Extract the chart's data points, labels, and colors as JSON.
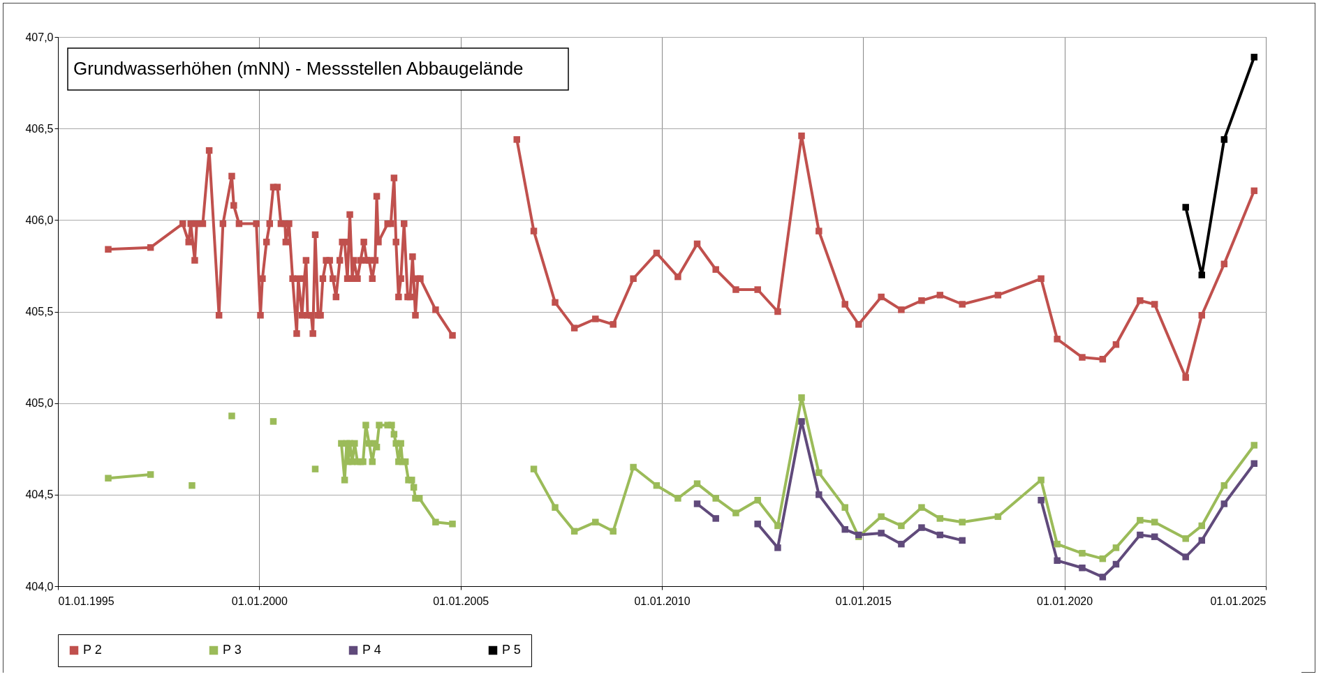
{
  "chart_data": {
    "type": "line",
    "title": "Grundwasserhöhen (mNN) - Messstellen Abbaugelände",
    "xlim": [
      "1995-01-01",
      "2025-01-01"
    ],
    "xticks": [
      {
        "value": "1995-01-01",
        "label": "01.01.1995"
      },
      {
        "value": "2000-01-01",
        "label": "01.01.2000"
      },
      {
        "value": "2005-01-01",
        "label": "01.01.2005"
      },
      {
        "value": "2010-01-01",
        "label": "01.01.2010"
      },
      {
        "value": "2015-01-01",
        "label": "01.01.2015"
      },
      {
        "value": "2020-01-01",
        "label": "01.01.2020"
      },
      {
        "value": "2025-01-01",
        "label": "01.01.2025"
      }
    ],
    "ylim": [
      404,
      407
    ],
    "yticks": [
      {
        "value": 404,
        "label": "404,0"
      },
      {
        "value": 404.5,
        "label": "404,5"
      },
      {
        "value": 405,
        "label": "405,0"
      },
      {
        "value": 405.5,
        "label": "405,5"
      },
      {
        "value": 406,
        "label": "406,0"
      },
      {
        "value": 406.5,
        "label": "406,5"
      },
      {
        "value": 407,
        "label": "407,0"
      }
    ],
    "grid": true,
    "legend": "bottom",
    "marker": "square",
    "line_style": "solid",
    "series": [
      {
        "name": "P 2",
        "color": "#c0504d",
        "x": [
          "1996-04-01",
          "1997-04-20",
          "1998-02-06",
          "1998-04-01",
          "1998-04-20",
          "1998-05-26",
          "1998-06-13",
          "1998-08-07",
          "1998-10-04",
          "1999-01-01",
          "1999-02-06",
          "1999-04-27",
          "1999-05-15",
          "1999-07-02",
          "1999-12-06",
          "2000-01-12",
          "2000-01-30",
          "2000-03-07",
          "2000-04-05",
          "2000-05-08",
          "2000-06-14",
          "2000-07-16",
          "2000-08-22",
          "2000-08-29",
          "2000-09-27",
          "2000-10-30",
          "2000-12-06",
          "2000-12-20",
          "2001-01-23",
          "2001-02-14",
          "2001-03-01",
          "2001-03-15",
          "2001-04-17",
          "2001-05-02",
          "2001-05-23",
          "2001-06-18",
          "2001-07-10",
          "2001-07-31",
          "2001-08-30",
          "2001-10-01",
          "2001-10-30",
          "2001-11-28",
          "2002-01-01",
          "2002-01-23",
          "2002-02-14",
          "2002-03-11",
          "2002-04-02",
          "2002-04-24",
          "2002-05-08",
          "2002-06-10",
          "2002-07-09",
          "2002-08-07",
          "2002-09-02",
          "2002-09-24",
          "2002-10-23",
          "2002-11-18",
          "2002-12-02",
          "2002-12-17",
          "2003-03-11",
          "2003-04-09",
          "2003-05-08",
          "2003-05-26",
          "2003-06-18",
          "2003-07-09",
          "2003-08-07",
          "2003-09-09",
          "2003-10-01",
          "2003-10-23",
          "2003-11-18",
          "2003-12-09",
          "2004-01-01",
          "2004-05-19",
          "2004-10-19",
          "2005-08-01",
          "2006-05-26",
          "2006-10-27",
          "2007-05-08",
          "2007-10-30",
          "2008-05-08",
          "2008-10-16",
          "2009-04-17",
          "2009-11-14",
          "2010-05-26",
          "2010-11-17",
          "2011-05-05",
          "2011-11-03",
          "2012-05-19",
          "2012-11-17",
          "2013-06-21",
          "2013-11-25",
          "2014-07-20",
          "2014-11-21",
          "2015-06-14",
          "2015-12-13",
          "2016-06-14",
          "2016-11-28",
          "2017-06-18",
          "2018-05-08",
          "2019-06-03",
          "2019-10-27",
          "2020-06-10",
          "2020-12-13",
          "2021-04-13",
          "2021-11-17",
          "2022-03-29",
          "2023-01-05",
          "2023-05-31",
          "2023-12-20",
          "2024-09-17"
        ],
        "values": [
          405.84,
          405.85,
          405.98,
          405.88,
          405.98,
          405.78,
          405.98,
          405.98,
          406.38,
          405.48,
          405.98,
          406.24,
          406.08,
          405.98,
          405.98,
          405.48,
          405.68,
          405.88,
          405.98,
          406.18,
          406.18,
          405.98,
          405.98,
          405.88,
          405.98,
          405.68,
          405.38,
          405.68,
          405.48,
          405.68,
          405.78,
          405.48,
          405.48,
          405.38,
          405.92,
          405.48,
          405.48,
          405.68,
          405.78,
          405.78,
          405.68,
          405.58,
          405.78,
          405.88,
          405.88,
          405.68,
          406.03,
          405.68,
          405.78,
          405.68,
          405.78,
          405.88,
          405.78,
          405.78,
          405.68,
          405.78,
          406.13,
          405.88,
          405.98,
          405.98,
          406.23,
          405.88,
          405.58,
          405.68,
          405.98,
          405.58,
          405.58,
          405.8,
          405.48,
          405.68,
          405.68,
          405.51,
          405.37,
          null,
          406.44,
          405.94,
          405.55,
          405.41,
          405.46,
          405.43,
          405.68,
          405.82,
          405.69,
          405.87,
          405.73,
          405.62,
          405.62,
          405.5,
          406.46,
          405.94,
          405.54,
          405.43,
          405.58,
          405.51,
          405.56,
          405.59,
          405.54,
          405.59,
          405.68,
          405.35,
          405.25,
          405.24,
          405.32,
          405.56,
          405.54,
          405.14,
          405.48,
          405.76,
          406.16
        ]
      },
      {
        "name": "P 3",
        "color": "#9bbb59",
        "x": [
          "1996-04-01",
          "1997-04-20",
          "1997-11-01",
          "1998-05-01",
          "1998-12-01",
          "1999-04-27",
          "1999-11-01",
          "2000-05-08",
          "2000-11-01",
          "2001-05-23",
          "2001-09-01",
          "2002-01-15",
          "2002-02-14",
          "2002-03-04",
          "2002-03-18",
          "2002-04-02",
          "2002-04-24",
          "2002-05-15",
          "2002-06-10",
          "2002-07-09",
          "2002-07-31",
          "2002-08-25",
          "2002-09-24",
          "2002-10-23",
          "2002-11-18",
          "2002-12-02",
          "2002-12-24",
          "2003-03-11",
          "2003-04-16",
          "2003-05-08",
          "2003-05-26",
          "2003-06-18",
          "2003-07-09",
          "2003-07-23",
          "2003-08-19",
          "2003-09-16",
          "2003-10-16",
          "2003-11-03",
          "2003-11-18",
          "2003-12-24",
          "2004-05-19",
          "2004-10-19",
          "2005-08-01",
          "2006-10-27",
          "2007-05-08",
          "2007-10-30",
          "2008-05-08",
          "2008-10-16",
          "2009-04-17",
          "2009-11-14",
          "2010-05-26",
          "2010-11-17",
          "2011-05-05",
          "2011-11-03",
          "2012-05-19",
          "2012-11-17",
          "2013-06-21",
          "2013-11-25",
          "2014-07-20",
          "2014-11-21",
          "2015-06-14",
          "2015-12-13",
          "2016-06-14",
          "2016-11-28",
          "2017-06-18",
          "2018-05-08",
          "2019-06-03",
          "2019-10-27",
          "2020-06-10",
          "2020-12-13",
          "2021-04-13",
          "2021-11-17",
          "2022-03-29",
          "2023-01-05",
          "2023-05-31",
          "2023-12-20",
          "2024-09-17"
        ],
        "values": [
          404.59,
          404.61,
          null,
          404.55,
          null,
          404.93,
          null,
          404.9,
          null,
          404.64,
          null,
          404.78,
          404.58,
          404.78,
          404.68,
          404.78,
          404.68,
          404.78,
          404.68,
          404.68,
          404.68,
          404.88,
          404.78,
          404.68,
          404.78,
          404.76,
          404.88,
          404.88,
          404.88,
          404.83,
          404.78,
          404.68,
          404.78,
          404.68,
          404.68,
          404.58,
          404.58,
          404.54,
          404.48,
          404.48,
          404.35,
          404.34,
          null,
          404.64,
          404.43,
          404.3,
          404.35,
          404.3,
          404.65,
          404.55,
          404.48,
          404.56,
          404.48,
          404.4,
          404.47,
          404.33,
          405.03,
          404.62,
          404.43,
          404.27,
          404.38,
          404.33,
          404.43,
          404.37,
          404.35,
          404.38,
          404.58,
          404.23,
          404.18,
          404.15,
          404.21,
          404.36,
          404.35,
          404.26,
          404.33,
          404.55,
          404.77
        ]
      },
      {
        "name": "P 4",
        "color": "#604a7b",
        "x": [
          "2010-11-17",
          "2011-05-05",
          "2011-11-15",
          "2012-05-19",
          "2012-11-17",
          "2013-06-21",
          "2013-11-25",
          "2014-07-20",
          "2014-11-21",
          "2015-06-14",
          "2015-12-13",
          "2016-06-14",
          "2016-11-28",
          "2017-06-18",
          "2018-06-01",
          "2019-06-03",
          "2019-10-27",
          "2020-06-10",
          "2020-12-13",
          "2021-04-13",
          "2021-11-17",
          "2022-03-29",
          "2023-01-05",
          "2023-05-31",
          "2023-12-20",
          "2024-09-17"
        ],
        "values": [
          404.45,
          404.37,
          null,
          404.34,
          404.21,
          404.9,
          404.5,
          404.31,
          404.28,
          404.29,
          404.23,
          404.32,
          404.28,
          404.25,
          null,
          404.47,
          404.14,
          404.1,
          404.05,
          404.12,
          404.28,
          404.27,
          404.16,
          404.25,
          404.45,
          404.67
        ]
      },
      {
        "name": "P 5",
        "color": "#000000",
        "x": [
          "2023-01-05",
          "2023-05-31",
          "2023-12-20",
          "2024-09-17"
        ],
        "values": [
          406.07,
          405.7,
          406.44,
          406.89
        ]
      }
    ]
  }
}
